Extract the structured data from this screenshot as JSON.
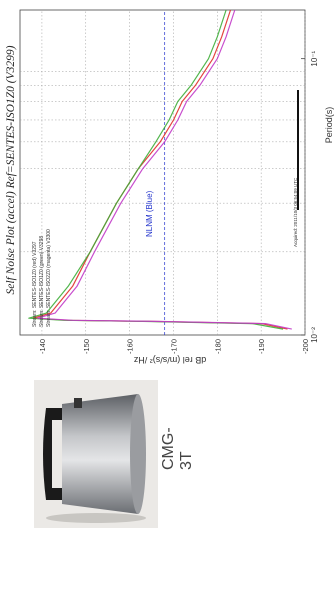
{
  "device": {
    "label": "CMG-3T"
  },
  "plot": {
    "title": "Self Noise Plot (accel)  Ref=SENTES-ISO1Z0 (V3299)",
    "xlabel": "Period(s)",
    "ylabel": "dB rel (m/s/s)² /Hz",
    "legend": [
      "Stream: SENTES-ISO1Z0 (red) V3297",
      "Stream: SENTES-ISO1Z0 (green) V3298",
      "Stream: SENTES-ISO2Z0 (magenta) V3300"
    ],
    "annotation": "NLNM (Blue)",
    "timestamp": "Acquired: 2011/10/3 06:54:09 UTC"
  },
  "colors": {
    "red": "#e0302a",
    "green": "#3fae3a",
    "magenta": "#c23bc8",
    "nlnm": "#2233cc"
  },
  "chart_data": {
    "type": "line",
    "title": "Self Noise Plot (accel)  Ref=SENTES-ISO1Z0 (V3299)",
    "xlabel": "Period(s)",
    "ylabel": "dB rel (m/s/s)² /Hz",
    "x_scale": "log",
    "xlim": [
      0.01,
      0.15
    ],
    "ylim": [
      -200,
      -135
    ],
    "x_ticks": [
      {
        "value": 0.01,
        "label": "10⁻²"
      },
      {
        "value": 0.1,
        "label": "10⁻¹"
      }
    ],
    "y_ticks": [
      -140,
      -150,
      -160,
      -170,
      -180,
      -190,
      -200
    ],
    "grid": true,
    "series": [
      {
        "name": "SENTES-ISO1Z0 (red) V3297",
        "color": "red",
        "x": [
          0.0105,
          0.011,
          0.0112,
          0.0113,
          0.0115,
          0.012,
          0.015,
          0.02,
          0.03,
          0.04,
          0.05,
          0.06,
          0.07,
          0.08,
          0.1,
          0.12,
          0.15
        ],
        "y": [
          -196,
          -190,
          -165,
          -146,
          -138,
          -142,
          -147,
          -151,
          -157,
          -162,
          -167,
          -170,
          -172,
          -175,
          -179,
          -181,
          -183
        ]
      },
      {
        "name": "SENTES-ISO1Z0 (green) V3298",
        "color": "green",
        "x": [
          0.0105,
          0.011,
          0.0112,
          0.0113,
          0.0115,
          0.012,
          0.015,
          0.02,
          0.03,
          0.04,
          0.05,
          0.06,
          0.07,
          0.08,
          0.1,
          0.12,
          0.15
        ],
        "y": [
          -195,
          -188,
          -163,
          -145,
          -137,
          -141,
          -146,
          -151,
          -157,
          -162,
          -166,
          -169,
          -171,
          -174,
          -178,
          -180,
          -182
        ]
      },
      {
        "name": "SENTES-ISO2Z0 (magenta) V3300",
        "color": "magenta",
        "x": [
          0.0105,
          0.011,
          0.0112,
          0.0113,
          0.0115,
          0.012,
          0.015,
          0.02,
          0.03,
          0.04,
          0.05,
          0.06,
          0.07,
          0.08,
          0.1,
          0.12,
          0.15
        ],
        "y": [
          -197,
          -191,
          -166,
          -147,
          -139,
          -143,
          -148,
          -152,
          -158,
          -163,
          -168,
          -171,
          -173,
          -176,
          -180,
          -182,
          -184
        ]
      }
    ],
    "reference_line": {
      "name": "NLNM (Blue)",
      "y": -168
    }
  }
}
